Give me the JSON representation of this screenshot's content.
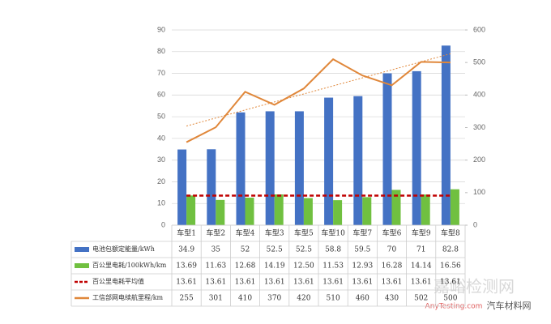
{
  "chart_data": {
    "type": "bar",
    "categories": [
      "车型1",
      "车型2",
      "车型4",
      "车型3",
      "车型5",
      "车型10",
      "车型7",
      "车型6",
      "车型9",
      "车型8"
    ],
    "ylim": [
      0,
      90
    ],
    "yticks": [
      0,
      10,
      20,
      30,
      40,
      50,
      60,
      70,
      80,
      90
    ],
    "y2lim": [
      0,
      600
    ],
    "y2ticks": [
      0,
      100,
      200,
      300,
      400,
      500,
      600
    ],
    "grid": true,
    "series": [
      {
        "name": "电池包额定能量/kWh",
        "type": "bar",
        "color": "#4472c4",
        "values": [
          34.9,
          35,
          52,
          52.5,
          52.5,
          58.8,
          59.5,
          70,
          71,
          82.8
        ]
      },
      {
        "name": "百公里电耗/100kWh/km",
        "type": "bar",
        "color": "#70c040",
        "values": [
          13.69,
          11.63,
          12.68,
          14.19,
          12.5,
          11.53,
          12.93,
          16.28,
          14.14,
          16.56
        ],
        "value_labels": [
          "13.69",
          "11.63",
          "12.68",
          "14.19",
          "12.50",
          "11.53",
          "12.93",
          "16.28",
          "14.14",
          "16.56"
        ]
      },
      {
        "name": "百公里电耗平均值",
        "type": "dashed-line",
        "color": "#c00000",
        "values": [
          13.61,
          13.61,
          13.61,
          13.61,
          13.61,
          13.61,
          13.61,
          13.61,
          13.61,
          13.61
        ]
      },
      {
        "name": "工信部网电续航里程/km",
        "type": "line",
        "axis": "y2",
        "color": "#e0873a",
        "trendline": true,
        "values": [
          255,
          301,
          410,
          370,
          420,
          510,
          460,
          430,
          502,
          500
        ]
      }
    ],
    "watermark": [
      "嘉峪检测网",
      "AnyTesting.com",
      "汽车材料网"
    ]
  }
}
